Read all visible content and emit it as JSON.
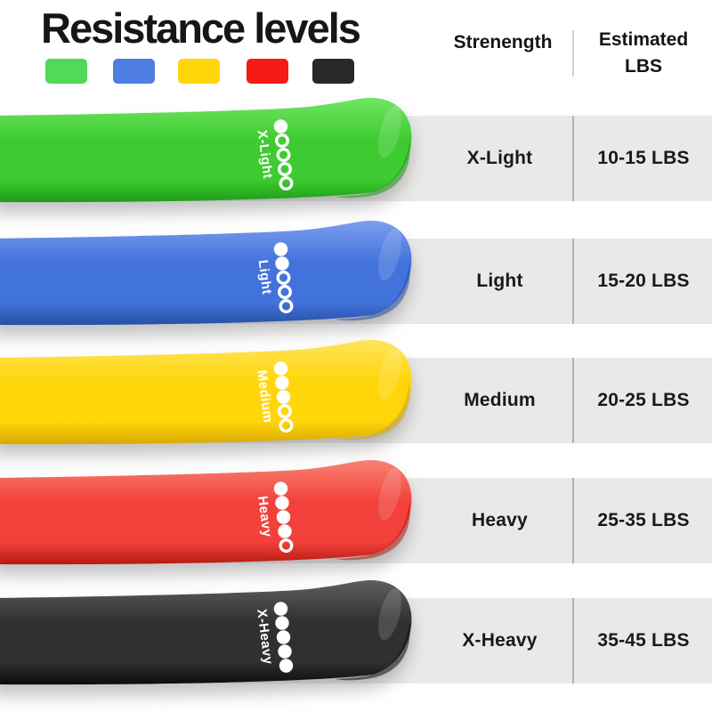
{
  "title": "Resistance levels",
  "legend": {
    "colors": [
      "#52d95a",
      "#4f7fe3",
      "#ffd60a",
      "#f61a15",
      "#282828"
    ]
  },
  "table": {
    "col1_header": "Strenength",
    "col2_header_line1": "Estimated",
    "col2_header_line2": "LBS"
  },
  "bands": [
    {
      "name": "X-Light",
      "lbs": "10-15 LBS",
      "dots_filled": 1,
      "dots_total": 5,
      "colors": {
        "top": "#72e563",
        "base": "#3ecb31",
        "bottom": "#1e9c18"
      }
    },
    {
      "name": "Light",
      "lbs": "15-20 LBS",
      "dots_filled": 2,
      "dots_total": 5,
      "colors": {
        "top": "#7b9ef0",
        "base": "#4273dc",
        "bottom": "#2750a5"
      }
    },
    {
      "name": "Medium",
      "lbs": "20-25 LBS",
      "dots_filled": 3,
      "dots_total": 5,
      "colors": {
        "top": "#ffe45c",
        "base": "#ffd60a",
        "bottom": "#d8a700"
      }
    },
    {
      "name": "Heavy",
      "lbs": "25-35 LBS",
      "dots_filled": 4,
      "dots_total": 5,
      "colors": {
        "top": "#f98273",
        "base": "#f2413a",
        "bottom": "#b81a12"
      }
    },
    {
      "name": "X-Heavy",
      "lbs": "35-45 LBS",
      "dots_filled": 5,
      "dots_total": 5,
      "colors": {
        "top": "#5f5f5f",
        "base": "#303030",
        "bottom": "#0c0c0c"
      }
    }
  ],
  "colors": {
    "row_bg": "#e9e9e8",
    "cell_divider": "#b0b0b0",
    "header_divider": "#d2d2d2",
    "text": "#1a1a1a",
    "dot": "#ffffff"
  }
}
